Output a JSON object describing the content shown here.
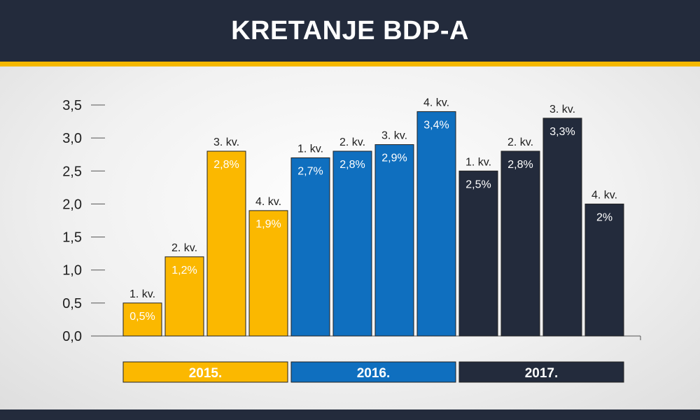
{
  "header": {
    "title": "KRETANJE BDP-A"
  },
  "colors": {
    "header_bg": "#232b3c",
    "accent": "#f5b800",
    "y2015": "#fbb800",
    "y2016": "#0f6fbf",
    "y2017": "#232b3c"
  },
  "chart_data": {
    "type": "bar",
    "title": "KRETANJE BDP-A",
    "xlabel": "",
    "ylabel": "",
    "ylim": [
      0,
      3.5
    ],
    "yticks": [
      "0,0",
      "0,5",
      "1,0",
      "1,5",
      "2,0",
      "2,5",
      "3,0",
      "3,5"
    ],
    "grid": false,
    "groups": [
      {
        "year": "2015.",
        "color": "#fbb800",
        "bars": [
          {
            "quarter": "1. kv.",
            "value": 0.5,
            "label": "0,5%"
          },
          {
            "quarter": "2. kv.",
            "value": 1.2,
            "label": "1,2%"
          },
          {
            "quarter": "3. kv.",
            "value": 2.8,
            "label": "2,8%"
          },
          {
            "quarter": "4. kv.",
            "value": 1.9,
            "label": "1,9%"
          }
        ]
      },
      {
        "year": "2016.",
        "color": "#0f6fbf",
        "bars": [
          {
            "quarter": "1. kv.",
            "value": 2.7,
            "label": "2,7%"
          },
          {
            "quarter": "2. kv.",
            "value": 2.8,
            "label": "2,8%"
          },
          {
            "quarter": "3. kv.",
            "value": 2.9,
            "label": "2,9%"
          },
          {
            "quarter": "4. kv.",
            "value": 3.4,
            "label": "3,4%"
          }
        ]
      },
      {
        "year": "2017.",
        "color": "#232b3c",
        "bars": [
          {
            "quarter": "1. kv.",
            "value": 2.5,
            "label": "2,5%"
          },
          {
            "quarter": "2. kv.",
            "value": 2.8,
            "label": "2,8%"
          },
          {
            "quarter": "3. kv.",
            "value": 3.3,
            "label": "3,3%"
          },
          {
            "quarter": "4. kv.",
            "value": 2.0,
            "label": "2%"
          }
        ]
      }
    ]
  }
}
